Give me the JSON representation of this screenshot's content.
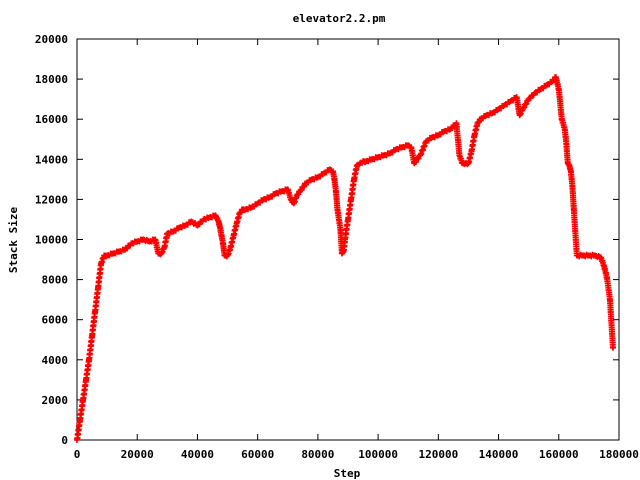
{
  "chart_data": {
    "type": "scatter",
    "title": "elevator2.2.pm",
    "xlabel": "Step",
    "ylabel": "Stack Size",
    "xlim": [
      0,
      180000
    ],
    "ylim": [
      0,
      20000
    ],
    "xticks": [
      0,
      20000,
      40000,
      60000,
      80000,
      100000,
      120000,
      140000,
      160000,
      180000
    ],
    "yticks": [
      0,
      2000,
      4000,
      6000,
      8000,
      10000,
      12000,
      14000,
      16000,
      18000,
      20000
    ],
    "marker": "+",
    "color": "#ff0000",
    "grid": false,
    "legend": "none",
    "series": [
      {
        "x": [
          0,
          1000,
          2000,
          3000,
          4000,
          5000,
          6000,
          7000,
          8000,
          9000,
          10000,
          12000,
          14000,
          16000,
          18000,
          20000,
          22000,
          24000,
          26000,
          27000,
          28000,
          29000,
          30000,
          32000,
          34000,
          36000,
          38000,
          40000,
          42000,
          44000,
          46000,
          47000,
          47500,
          48000,
          48500,
          49000,
          50000,
          51000,
          52000,
          53000,
          54000,
          55000,
          56000,
          58000,
          60000,
          62000,
          64000,
          66000,
          68000,
          70000,
          71000,
          72000,
          73000,
          74000,
          76000,
          78000,
          80000,
          82000,
          84000,
          85000,
          85500,
          86000,
          86500,
          87000,
          87500,
          88000,
          88500,
          89000,
          90000,
          91000,
          92000,
          93000,
          94000,
          95000,
          96000,
          98000,
          100000,
          102000,
          104000,
          106000,
          108000,
          110000,
          111000,
          112000,
          114000,
          116000,
          118000,
          120000,
          122000,
          124000,
          126000,
          127000,
          128000,
          129000,
          130000,
          131000,
          132000,
          133000,
          134000,
          136000,
          138000,
          140000,
          142000,
          144000,
          146000,
          147000,
          148000,
          150000,
          152000,
          154000,
          156000,
          158000,
          159000,
          160000,
          161000,
          162000,
          162500,
          163000,
          163500,
          164000,
          164500,
          165000,
          166000,
          168000,
          170000,
          172000,
          174000,
          175000,
          176000,
          177000,
          178000
        ],
        "y": [
          0,
          1000,
          2000,
          3000,
          4000,
          5200,
          6400,
          7600,
          8800,
          9200,
          9200,
          9300,
          9400,
          9500,
          9800,
          9900,
          10000,
          9900,
          10000,
          9300,
          9300,
          9600,
          10300,
          10400,
          10600,
          10700,
          10900,
          10700,
          11000,
          11100,
          11200,
          10900,
          10600,
          10200,
          9800,
          9200,
          9200,
          9600,
          10200,
          10800,
          11300,
          11500,
          11500,
          11600,
          11800,
          12000,
          12100,
          12300,
          12400,
          12500,
          12000,
          11800,
          12200,
          12400,
          12800,
          13000,
          13100,
          13300,
          13500,
          13400,
          13000,
          12400,
          11500,
          11000,
          10500,
          9300,
          9400,
          10000,
          11000,
          12000,
          13000,
          13700,
          13800,
          13900,
          13900,
          14000,
          14100,
          14200,
          14300,
          14500,
          14600,
          14700,
          14600,
          13800,
          14200,
          14900,
          15100,
          15200,
          15400,
          15500,
          15800,
          14200,
          13800,
          13800,
          13800,
          14400,
          15200,
          15800,
          16000,
          16200,
          16300,
          16500,
          16700,
          16900,
          17100,
          16200,
          16500,
          17000,
          17300,
          17500,
          17700,
          17900,
          18100,
          17500,
          16000,
          15500,
          14800,
          13800,
          13700,
          13400,
          12700,
          11500,
          9200,
          9200,
          9200,
          9200,
          9100,
          8700,
          8100,
          7000,
          4600
        ]
      }
    ]
  }
}
